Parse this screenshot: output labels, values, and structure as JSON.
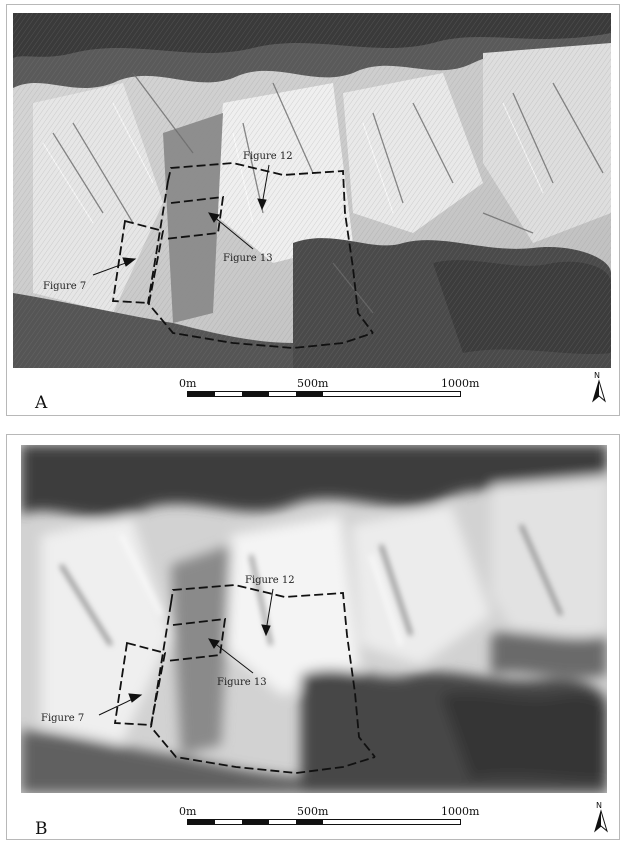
{
  "panels": [
    {
      "letter": "A",
      "labels": {
        "fig12": "Figure 12",
        "fig13": "Figure 13",
        "fig7": "Figure 7"
      },
      "scale": {
        "start": "0m",
        "mid": "500m",
        "end": "1000m"
      },
      "north": "N"
    },
    {
      "letter": "B",
      "labels": {
        "fig12": "Figure 12",
        "fig13": "Figure 13",
        "fig7": "Figure 7"
      },
      "scale": {
        "start": "0m",
        "mid": "500m",
        "end": "1000m"
      },
      "north": "N"
    }
  ],
  "colors": {
    "ink": "#111111",
    "terrain_light": "#e8e8e8",
    "terrain_dark": "#3a3a3a"
  }
}
